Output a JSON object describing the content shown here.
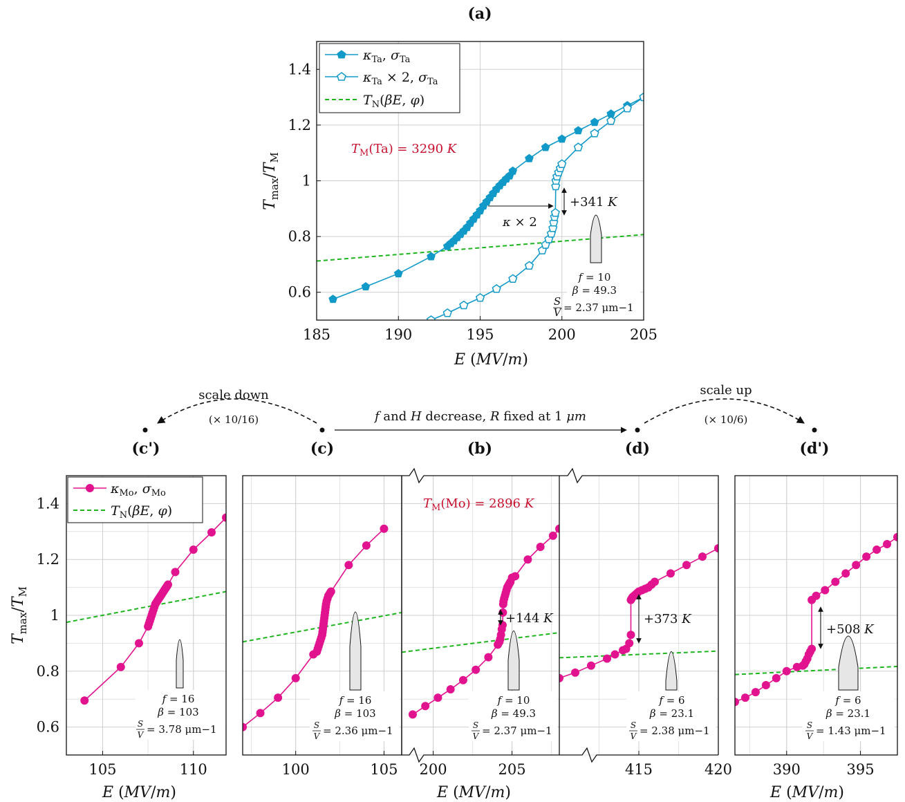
{
  "colors": {
    "ta": "#1199c8",
    "mo": "#e2138f",
    "tn": "#1db51d",
    "red": "#c8102e",
    "grid": "#cfcfcf"
  },
  "chart_data": [
    {
      "id": "a",
      "type": "line",
      "panel_label": "(a)",
      "xlabel": "E (MV/m)",
      "ylabel": "Tmax/TM",
      "xlim": [
        185,
        205
      ],
      "ylim": [
        0.5,
        1.5
      ],
      "xticks": [
        185,
        190,
        195,
        200,
        205
      ],
      "yticks": [
        0.6,
        0.8,
        1,
        1.2,
        1.4
      ],
      "xtick_labels": [
        "185",
        "190",
        "195",
        "200",
        "205"
      ],
      "ytick_labels": [
        "0.6",
        "0.8",
        "1",
        "1.2",
        "1.4"
      ],
      "legend_position": "top-left",
      "legend": [
        "κTa, σTa",
        "κTa × 2, σTa",
        "TN(βE, φ)"
      ],
      "series": [
        {
          "name": "κTa, σTa",
          "marker": "filled-pentagon",
          "x": [
            186,
            188,
            190,
            192,
            193,
            193.2,
            193.4,
            193.6,
            193.8,
            194,
            194.2,
            194.4,
            194.6,
            194.8,
            195,
            195.2,
            195.4,
            195.6,
            195.8,
            196,
            196.2,
            196.4,
            196.6,
            196.8,
            197,
            198,
            199,
            200,
            201,
            202,
            203,
            204,
            205
          ],
          "y": [
            0.575,
            0.62,
            0.667,
            0.728,
            0.765,
            0.775,
            0.785,
            0.797,
            0.808,
            0.82,
            0.833,
            0.848,
            0.863,
            0.878,
            0.893,
            0.91,
            0.925,
            0.94,
            0.955,
            0.97,
            0.983,
            0.995,
            1.007,
            1.018,
            1.035,
            1.08,
            1.12,
            1.15,
            1.18,
            1.21,
            1.24,
            1.27,
            1.3
          ]
        },
        {
          "name": "κTa × 2, σTa",
          "marker": "open-pentagon",
          "x": [
            192,
            193,
            194,
            195,
            196,
            197,
            198,
            198.8,
            199.0,
            199.2,
            199.35,
            199.45,
            199.5,
            199.55,
            199.6,
            199.62,
            199.64,
            199.7,
            199.8,
            199.9,
            200,
            201,
            202,
            203,
            204,
            205
          ],
          "y": [
            0.5,
            0.525,
            0.553,
            0.58,
            0.612,
            0.648,
            0.695,
            0.75,
            0.77,
            0.79,
            0.81,
            0.83,
            0.85,
            0.87,
            0.885,
            0.98,
            1.0,
            1.015,
            1.03,
            1.045,
            1.06,
            1.12,
            1.17,
            1.215,
            1.26,
            1.3
          ]
        },
        {
          "name": "TN(βE, φ)",
          "style": "dashed",
          "x": [
            185,
            205
          ],
          "y": [
            0.712,
            0.807
          ]
        }
      ],
      "annotations": {
        "tm_label": "TM(Ta) = 3290 K",
        "kappa_label": "κ × 2",
        "jump_label": "+341 K",
        "f": "f = 10",
        "beta": "β = 49.3",
        "sv_value": "= 2.37 μm−1"
      }
    },
    {
      "id": "c_prime",
      "type": "line",
      "panel_label": "(c')",
      "xlabel": "E (MV/m)",
      "ylabel": "Tmax/TM",
      "xlim": [
        103,
        111.8
      ],
      "ylim": [
        0.5,
        1.5
      ],
      "xticks": [
        105,
        110
      ],
      "yticks": [
        0.6,
        0.8,
        1,
        1.2,
        1.4
      ],
      "xtick_labels": [
        "105",
        "110"
      ],
      "ytick_labels": [
        "0.6",
        "0.8",
        "1",
        "1.2",
        "1.4"
      ],
      "legend_position": "top-left",
      "legend": [
        "κMo, σMo",
        "TN(βE, φ)"
      ],
      "series": [
        {
          "name": "κMo, σMo",
          "marker": "filled-circle",
          "x": [
            104,
            106,
            107,
            107.5,
            107.55,
            107.6,
            107.65,
            107.7,
            107.75,
            107.8,
            107.85,
            107.9,
            107.95,
            108,
            108.05,
            108.1,
            108.15,
            108.2,
            108.25,
            108.3,
            108.35,
            108.4,
            108.45,
            108.5,
            108.55,
            108.6,
            109,
            110,
            111,
            111.8
          ],
          "y": [
            0.695,
            0.815,
            0.9,
            0.96,
            0.97,
            0.98,
            0.99,
            1.0,
            1.01,
            1.02,
            1.03,
            1.04,
            1.045,
            1.05,
            1.055,
            1.06,
            1.065,
            1.07,
            1.075,
            1.08,
            1.085,
            1.09,
            1.095,
            1.1,
            1.105,
            1.11,
            1.155,
            1.235,
            1.297,
            1.35
          ]
        },
        {
          "name": "TN(βE, φ)",
          "style": "dashed",
          "x": [
            103,
            111.8
          ],
          "y": [
            0.975,
            1.085
          ]
        }
      ],
      "annotations": {
        "f": "f = 16",
        "beta": "β = 103",
        "sv_value": "= 3.78 μm−1"
      }
    },
    {
      "id": "c",
      "type": "line",
      "panel_label": "(c)",
      "xlabel": "",
      "ylabel": "",
      "xlim": [
        97,
        106
      ],
      "ylim": [
        0.5,
        1.5
      ],
      "xticks": [
        100,
        105
      ],
      "yticks": [
        0.6,
        0.8,
        1,
        1.2,
        1.4
      ],
      "xtick_labels": [
        "100",
        "105"
      ],
      "series": [
        {
          "name": "c",
          "marker": "filled-circle",
          "x": [
            97,
            98,
            99,
            100,
            101,
            101.2,
            101.25,
            101.3,
            101.35,
            101.4,
            101.45,
            101.5,
            101.52,
            101.54,
            101.56,
            101.58,
            101.6,
            101.62,
            101.64,
            101.66,
            101.68,
            101.7,
            101.72,
            101.75,
            101.8,
            101.85,
            101.9,
            101.95,
            102,
            103,
            104,
            105
          ],
          "y": [
            0.6,
            0.65,
            0.705,
            0.775,
            0.86,
            0.87,
            0.88,
            0.89,
            0.9,
            0.91,
            0.92,
            0.93,
            0.94,
            0.95,
            0.96,
            0.97,
            0.98,
            0.99,
            1.0,
            1.01,
            1.02,
            1.03,
            1.04,
            1.05,
            1.06,
            1.07,
            1.075,
            1.08,
            1.085,
            1.18,
            1.25,
            1.31
          ]
        },
        {
          "name": "tn_c",
          "style": "dashed",
          "x": [
            97,
            106
          ],
          "y": [
            0.905,
            1.01
          ]
        }
      ],
      "annotations": {
        "f": "f = 16",
        "beta": "β = 103",
        "sv_value": "= 2.36 μm−1"
      }
    },
    {
      "id": "b",
      "type": "line",
      "panel_label": "(b)",
      "xlabel": "E (MV/m)",
      "ylabel": "",
      "xlim": [
        198,
        208
      ],
      "ylim": [
        0.5,
        1.5
      ],
      "xticks": [
        200,
        205
      ],
      "yticks": [
        0.6,
        0.8,
        1,
        1.2,
        1.4
      ],
      "xtick_labels": [
        "200",
        "205"
      ],
      "series": [
        {
          "name": "b",
          "marker": "filled-circle",
          "x": [
            198.7,
            199.5,
            200.3,
            201.1,
            201.9,
            202.7,
            203.5,
            204.1,
            204.2,
            204.25,
            204.3,
            204.35,
            204.4,
            204.42,
            204.44,
            204.46,
            204.5,
            204.55,
            204.6,
            204.65,
            204.7,
            204.75,
            204.8,
            204.85,
            204.9,
            205,
            205.2,
            206,
            206.8,
            207.6,
            208
          ],
          "y": [
            0.645,
            0.675,
            0.705,
            0.735,
            0.768,
            0.805,
            0.85,
            0.895,
            0.905,
            0.915,
            0.93,
            0.95,
            0.965,
            1.01,
            1.04,
            1.05,
            1.06,
            1.07,
            1.08,
            1.09,
            1.1,
            1.105,
            1.11,
            1.115,
            1.12,
            1.135,
            1.14,
            1.2,
            1.245,
            1.285,
            1.31
          ]
        },
        {
          "name": "tn_b",
          "style": "dashed",
          "x": [
            198,
            208
          ],
          "y": [
            0.868,
            0.938
          ]
        }
      ],
      "annotations": {
        "tm_label": "TM(Mo) = 2896 K",
        "jump_label": "+144 K",
        "f": "f = 10",
        "beta": "β = 49.3",
        "sv_value": "= 2.37 μm−1"
      }
    },
    {
      "id": "d",
      "type": "line",
      "panel_label": "(d)",
      "xlabel": "",
      "ylabel": "",
      "xlim": [
        410,
        420
      ],
      "ylim": [
        0.5,
        1.5
      ],
      "xticks": [
        415,
        420
      ],
      "yticks": [
        0.6,
        0.8,
        1,
        1.2,
        1.4
      ],
      "xtick_labels": [
        "415",
        "420"
      ],
      "series": [
        {
          "name": "d",
          "marker": "filled-circle",
          "x": [
            410,
            411,
            412,
            413,
            413.5,
            414,
            414.2,
            414.4,
            414.5,
            414.5,
            414.55,
            414.6,
            414.7,
            414.8,
            414.9,
            415,
            415.2,
            415.4,
            415.6,
            415.8,
            416,
            417,
            418,
            419,
            420
          ],
          "y": [
            0.775,
            0.795,
            0.82,
            0.845,
            0.86,
            0.875,
            0.88,
            0.9,
            0.93,
            1.055,
            1.06,
            1.065,
            1.07,
            1.075,
            1.08,
            1.085,
            1.09,
            1.095,
            1.1,
            1.11,
            1.12,
            1.15,
            1.18,
            1.21,
            1.24
          ]
        },
        {
          "name": "tn_d",
          "style": "dashed",
          "x": [
            410,
            420
          ],
          "y": [
            0.848,
            0.872
          ]
        }
      ],
      "annotations": {
        "jump_label": "+373 K",
        "f": "f = 6",
        "beta": "β = 23.1",
        "sv_value": "= 2.38 μm−1"
      }
    },
    {
      "id": "d_prime",
      "type": "line",
      "panel_label": "(d')",
      "xlabel": "E (MV/m)",
      "ylabel": "",
      "xlim": [
        386.5,
        397.5
      ],
      "ylim": [
        0.5,
        1.5
      ],
      "xticks": [
        390,
        395
      ],
      "yticks": [
        0.6,
        0.8,
        1,
        1.2,
        1.4
      ],
      "xtick_labels": [
        "390",
        "395"
      ],
      "series": [
        {
          "name": "d_prime",
          "marker": "filled-circle",
          "x": [
            386.5,
            387.2,
            387.9,
            388.6,
            389.3,
            390,
            390.7,
            391.1,
            391.2,
            391.3,
            391.4,
            391.5,
            391.6,
            391.7,
            391.7,
            392,
            392.6,
            393.3,
            394,
            394.7,
            395.4,
            396.1,
            396.8,
            397.5
          ],
          "y": [
            0.69,
            0.705,
            0.725,
            0.75,
            0.775,
            0.8,
            0.815,
            0.82,
            0.825,
            0.835,
            0.845,
            0.86,
            0.87,
            0.88,
            1.055,
            1.07,
            1.09,
            1.12,
            1.15,
            1.18,
            1.21,
            1.235,
            1.255,
            1.28
          ]
        },
        {
          "name": "tn_dp",
          "style": "dashed",
          "x": [
            386.5,
            397.5
          ],
          "y": [
            0.788,
            0.817
          ]
        }
      ],
      "annotations": {
        "jump_label": "+508 K",
        "f": "f = 6",
        "beta": "β = 23.1",
        "sv_value": "= 1.43 μm−1"
      }
    }
  ],
  "middle_row": {
    "scale_down": "scale down",
    "scale_down_factor": "(× 10/16)",
    "scale_up": "scale up",
    "scale_up_factor": "(× 10/6)",
    "arrow_label": "f and H decrease, R fixed at 1 μm"
  }
}
